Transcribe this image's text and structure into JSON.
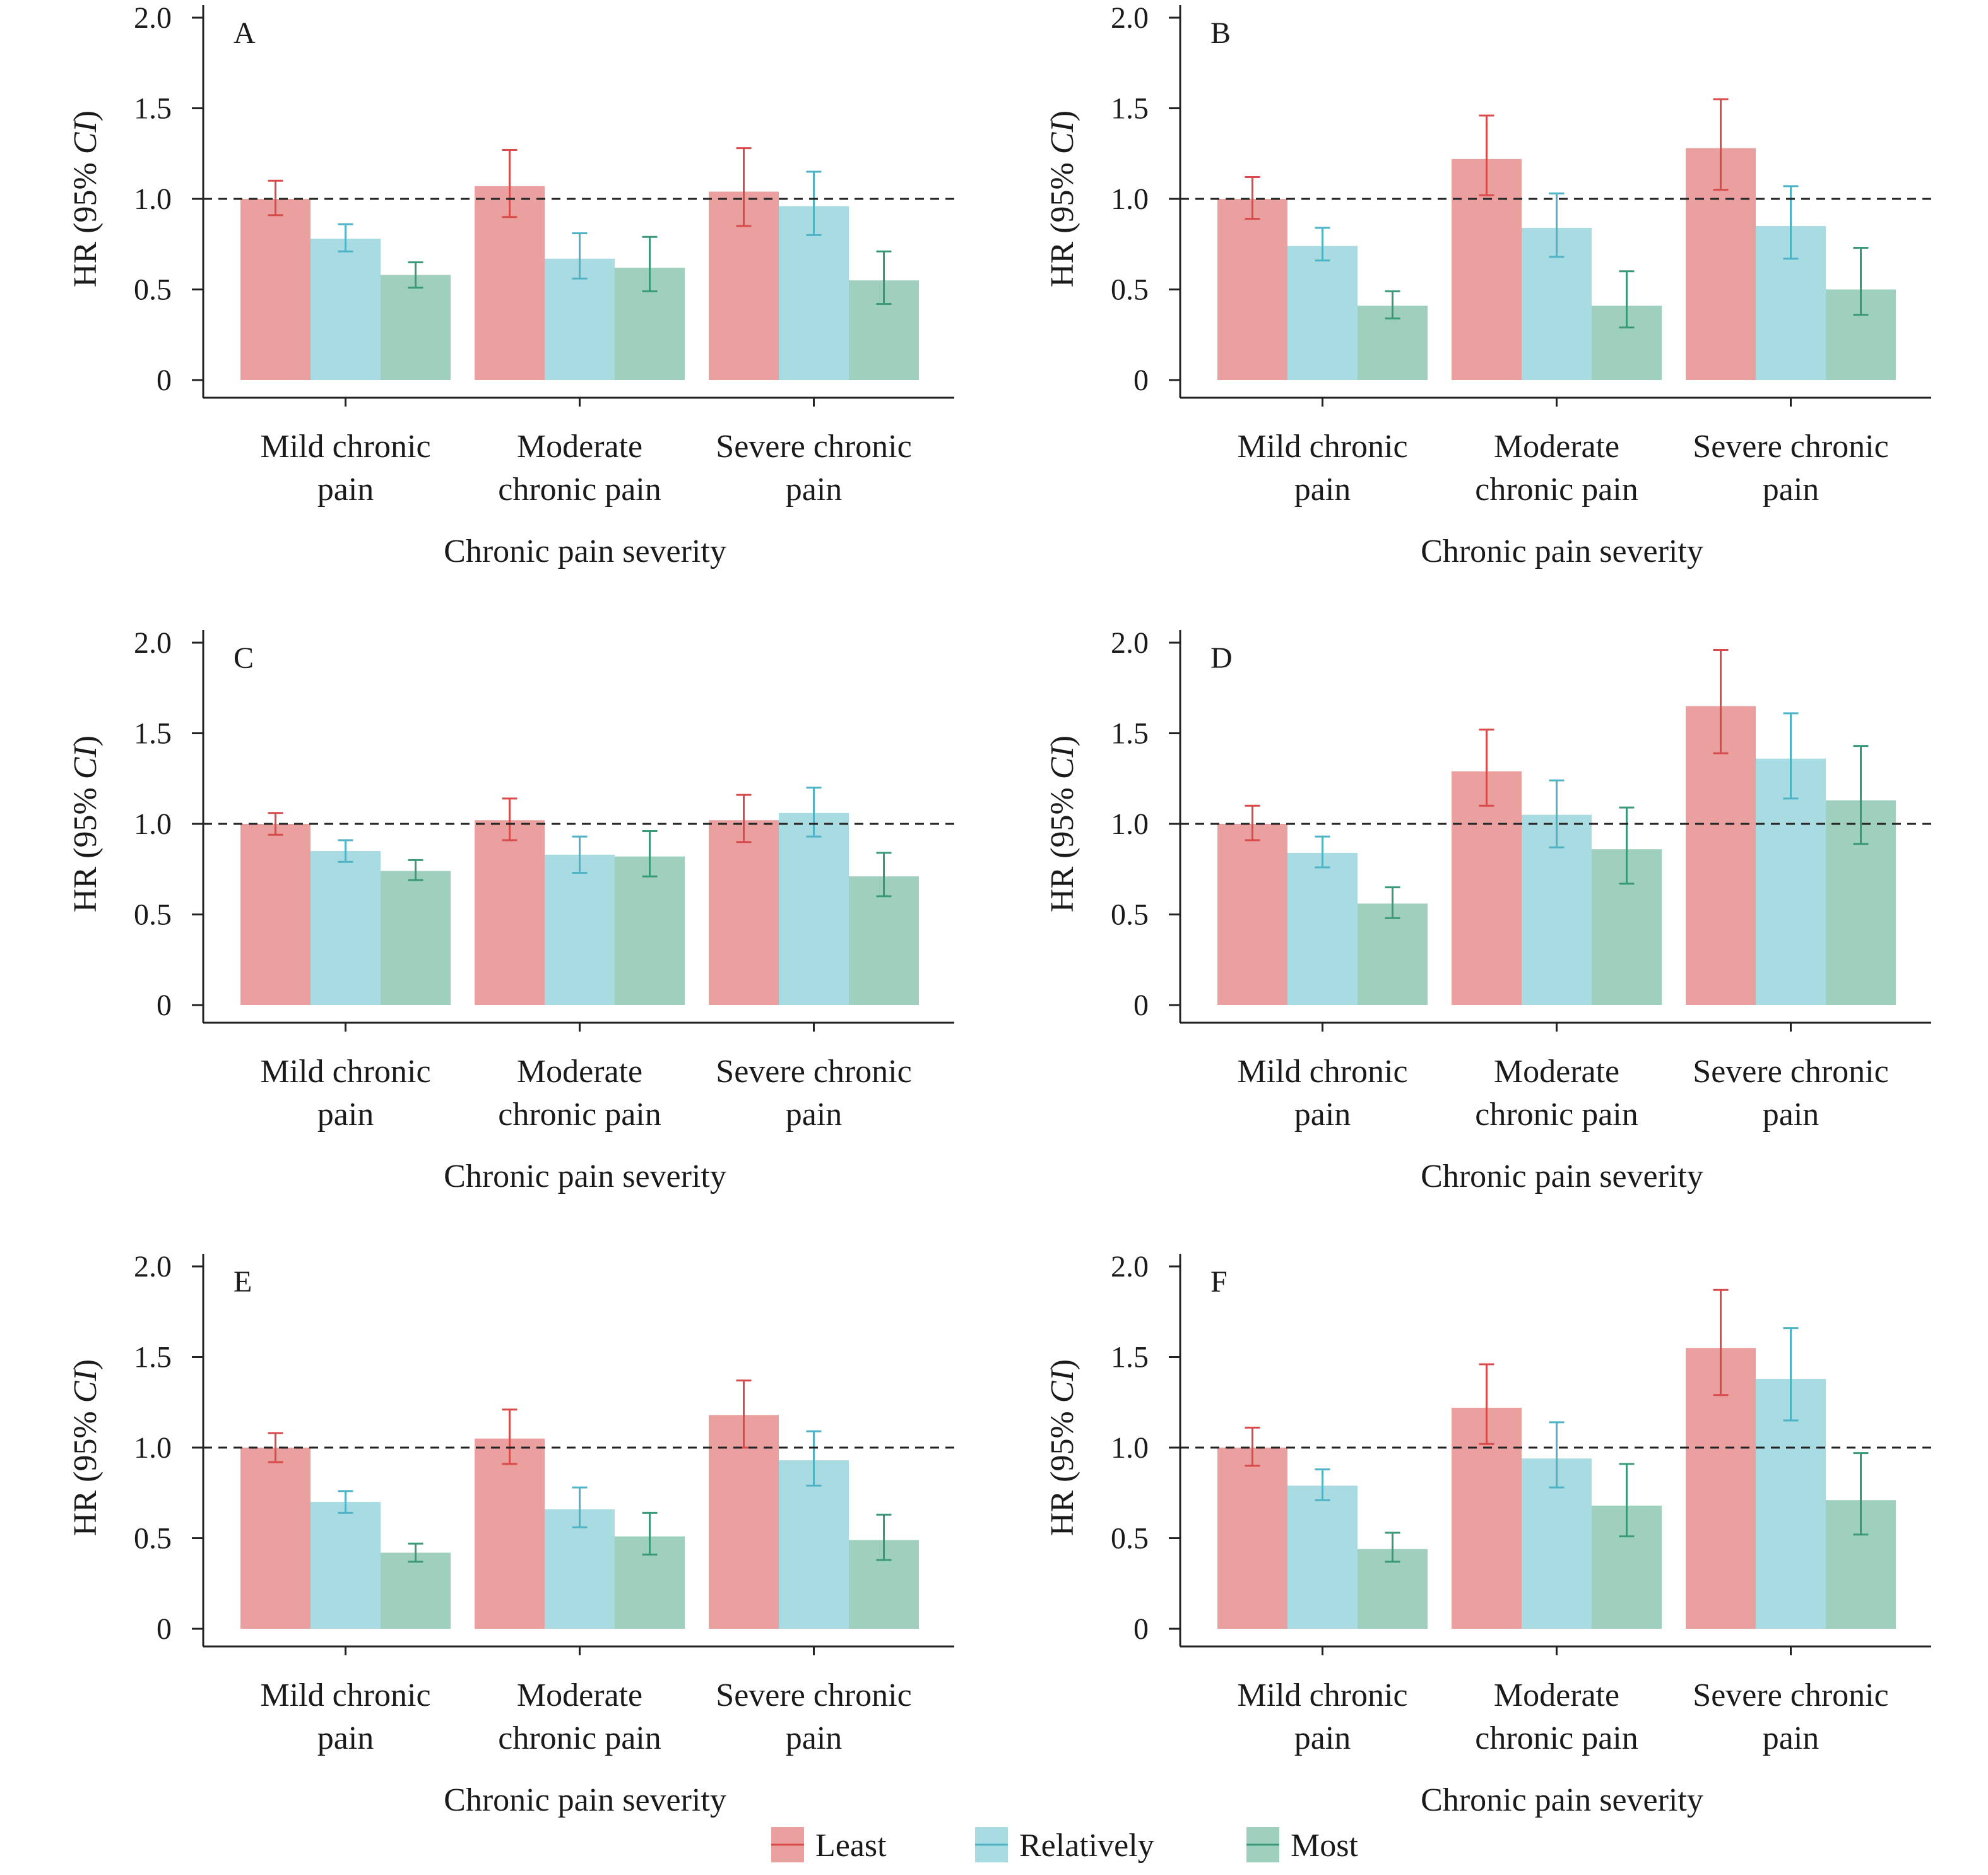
{
  "chart_data": {
    "type": "bar",
    "error_bars": true,
    "reference_line": 1.0,
    "ylim": [
      0,
      2.0
    ],
    "yticks": [
      "0",
      "0.5",
      "1.0",
      "1.5",
      "2.0"
    ],
    "ytick_values": [
      0,
      0.5,
      1.0,
      1.5,
      2.0
    ],
    "ylabel_main": "HR (95% ",
    "ylabel_italic": "CI",
    "ylabel_close": ")",
    "xlabel": "Chronic pain severity",
    "categories": [
      [
        "Mild chronic",
        "pain"
      ],
      [
        "Moderate",
        "chronic pain"
      ],
      [
        "Severe chronic",
        "pain"
      ]
    ],
    "legend": [
      {
        "name": "Least",
        "fill": "#eba0a0",
        "stroke": "#d94a4a"
      },
      {
        "name": "Relatively",
        "fill": "#a9dbe2",
        "stroke": "#4fb3c6"
      },
      {
        "name": "Most",
        "fill": "#9fd0bd",
        "stroke": "#3a9a78"
      }
    ],
    "panels": [
      {
        "label": "A",
        "series": [
          {
            "name": "Least",
            "values": [
              1.0,
              1.07,
              1.04
            ],
            "lower": [
              0.91,
              0.9,
              0.85
            ],
            "upper": [
              1.1,
              1.27,
              1.28
            ]
          },
          {
            "name": "Relatively",
            "values": [
              0.78,
              0.67,
              0.96
            ],
            "lower": [
              0.71,
              0.56,
              0.8
            ],
            "upper": [
              0.86,
              0.81,
              1.15
            ]
          },
          {
            "name": "Most",
            "values": [
              0.58,
              0.62,
              0.55
            ],
            "lower": [
              0.51,
              0.49,
              0.42
            ],
            "upper": [
              0.65,
              0.79,
              0.71
            ]
          }
        ]
      },
      {
        "label": "B",
        "series": [
          {
            "name": "Least",
            "values": [
              1.0,
              1.22,
              1.28
            ],
            "lower": [
              0.89,
              1.02,
              1.05
            ],
            "upper": [
              1.12,
              1.46,
              1.55
            ]
          },
          {
            "name": "Relatively",
            "values": [
              0.74,
              0.84,
              0.85
            ],
            "lower": [
              0.66,
              0.68,
              0.67
            ],
            "upper": [
              0.84,
              1.03,
              1.07
            ]
          },
          {
            "name": "Most",
            "values": [
              0.41,
              0.41,
              0.5
            ],
            "lower": [
              0.34,
              0.29,
              0.36
            ],
            "upper": [
              0.49,
              0.6,
              0.73
            ]
          }
        ]
      },
      {
        "label": "C",
        "series": [
          {
            "name": "Least",
            "values": [
              1.0,
              1.02,
              1.02
            ],
            "lower": [
              0.94,
              0.91,
              0.9
            ],
            "upper": [
              1.06,
              1.14,
              1.16
            ]
          },
          {
            "name": "Relatively",
            "values": [
              0.85,
              0.83,
              1.06
            ],
            "lower": [
              0.79,
              0.73,
              0.93
            ],
            "upper": [
              0.91,
              0.93,
              1.2
            ]
          },
          {
            "name": "Most",
            "values": [
              0.74,
              0.82,
              0.71
            ],
            "lower": [
              0.69,
              0.71,
              0.6
            ],
            "upper": [
              0.8,
              0.96,
              0.84
            ]
          }
        ]
      },
      {
        "label": "D",
        "series": [
          {
            "name": "Least",
            "values": [
              1.0,
              1.29,
              1.65
            ],
            "lower": [
              0.91,
              1.1,
              1.39
            ],
            "upper": [
              1.1,
              1.52,
              1.96
            ]
          },
          {
            "name": "Relatively",
            "values": [
              0.84,
              1.05,
              1.36
            ],
            "lower": [
              0.76,
              0.87,
              1.14
            ],
            "upper": [
              0.93,
              1.24,
              1.61
            ]
          },
          {
            "name": "Most",
            "values": [
              0.56,
              0.86,
              1.13
            ],
            "lower": [
              0.48,
              0.67,
              0.89
            ],
            "upper": [
              0.65,
              1.09,
              1.43
            ]
          }
        ]
      },
      {
        "label": "E",
        "series": [
          {
            "name": "Least",
            "values": [
              1.0,
              1.05,
              1.18
            ],
            "lower": [
              0.92,
              0.91,
              1.0
            ],
            "upper": [
              1.08,
              1.21,
              1.37
            ]
          },
          {
            "name": "Relatively",
            "values": [
              0.7,
              0.66,
              0.93
            ],
            "lower": [
              0.64,
              0.56,
              0.79
            ],
            "upper": [
              0.76,
              0.78,
              1.09
            ]
          },
          {
            "name": "Most",
            "values": [
              0.42,
              0.51,
              0.49
            ],
            "lower": [
              0.37,
              0.41,
              0.38
            ],
            "upper": [
              0.47,
              0.64,
              0.63
            ]
          }
        ]
      },
      {
        "label": "F",
        "series": [
          {
            "name": "Least",
            "values": [
              1.0,
              1.22,
              1.55
            ],
            "lower": [
              0.9,
              1.02,
              1.29
            ],
            "upper": [
              1.11,
              1.46,
              1.87
            ]
          },
          {
            "name": "Relatively",
            "values": [
              0.79,
              0.94,
              1.38
            ],
            "lower": [
              0.71,
              0.78,
              1.15
            ],
            "upper": [
              0.88,
              1.14,
              1.66
            ]
          },
          {
            "name": "Most",
            "values": [
              0.44,
              0.68,
              0.71
            ],
            "lower": [
              0.37,
              0.51,
              0.52
            ],
            "upper": [
              0.53,
              0.91,
              0.97
            ]
          }
        ]
      }
    ]
  }
}
